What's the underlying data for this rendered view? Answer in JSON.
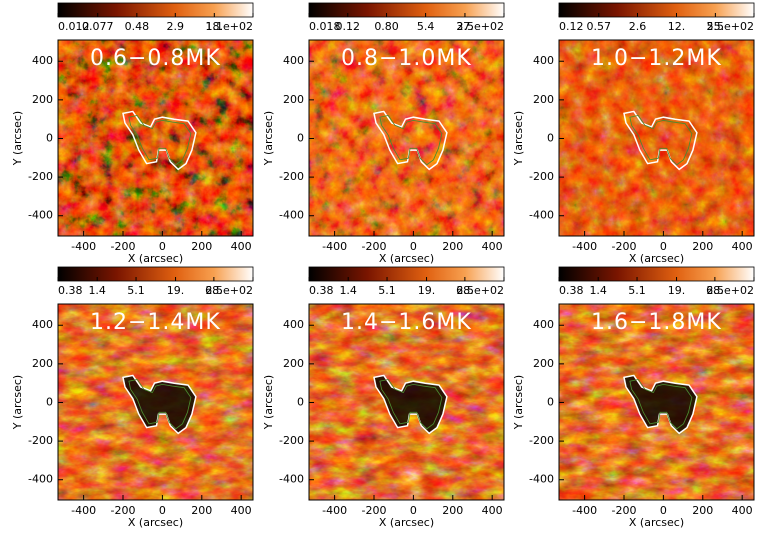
{
  "chart_data": [
    {
      "type": "image",
      "title": "0.6−0.8MK",
      "xlabel": "X (arcsec)",
      "ylabel": "Y (arcsec)",
      "xlim": [
        -530,
        460
      ],
      "ylim": [
        -505,
        510
      ],
      "xticks": [
        -400,
        -200,
        0,
        200,
        400
      ],
      "yticks": [
        -400,
        -200,
        0,
        200,
        400
      ],
      "colorbar": {
        "log": true,
        "clim": [
          0.012,
          110
        ],
        "ticks": [
          0.012,
          0.077,
          0.48,
          2.9,
          {
            "value": 18,
            "label": "18."
          },
          {
            "value": 110,
            "label": "1.1e+02"
          }
        ]
      }
    },
    {
      "type": "image",
      "title": "0.8−1.0MK",
      "xlabel": "X (arcsec)",
      "ylabel": "Y (arcsec)",
      "xlim": [
        -530,
        460
      ],
      "ylim": [
        -505,
        510
      ],
      "xticks": [
        -400,
        -200,
        0,
        200,
        400
      ],
      "yticks": [
        -400,
        -200,
        0,
        200,
        400
      ],
      "colorbar": {
        "log": true,
        "clim": [
          0.018,
          250
        ],
        "ticks": [
          0.018,
          0.12,
          {
            "value": 0.8,
            "label": "0.80"
          },
          5.4,
          {
            "value": 37,
            "label": "37."
          },
          {
            "value": 250,
            "label": "2.5e+02"
          }
        ]
      }
    },
    {
      "type": "image",
      "title": "1.0−1.2MK",
      "xlabel": "X (arcsec)",
      "ylabel": "Y (arcsec)",
      "xlim": [
        -530,
        460
      ],
      "ylim": [
        -505,
        510
      ],
      "xticks": [
        -400,
        -200,
        0,
        200,
        400
      ],
      "yticks": [
        -400,
        -200,
        0,
        200,
        400
      ],
      "colorbar": {
        "log": true,
        "clim": [
          0.12,
          250
        ],
        "ticks": [
          0.12,
          0.57,
          2.6,
          {
            "value": 12,
            "label": "12."
          },
          {
            "value": 55,
            "label": "55."
          },
          {
            "value": 250,
            "label": "2.5e+02"
          }
        ]
      }
    },
    {
      "type": "image",
      "title": "1.2−1.4MK",
      "xlabel": "X (arcsec)",
      "ylabel": "Y (arcsec)",
      "xlim": [
        -530,
        460
      ],
      "ylim": [
        -505,
        510
      ],
      "xticks": [
        -400,
        -200,
        0,
        200,
        400
      ],
      "yticks": [
        -400,
        -200,
        0,
        200,
        400
      ],
      "colorbar": {
        "log": true,
        "clim": [
          0.38,
          250
        ],
        "ticks": [
          0.38,
          1.4,
          5.1,
          {
            "value": 19,
            "label": "19."
          },
          {
            "value": 68,
            "label": "68."
          },
          {
            "value": 250,
            "label": "2.5e+02"
          }
        ]
      }
    },
    {
      "type": "image",
      "title": "1.4−1.6MK",
      "xlabel": "X (arcsec)",
      "ylabel": "Y (arcsec)",
      "xlim": [
        -530,
        460
      ],
      "ylim": [
        -505,
        510
      ],
      "xticks": [
        -400,
        -200,
        0,
        200,
        400
      ],
      "yticks": [
        -400,
        -200,
        0,
        200,
        400
      ],
      "colorbar": {
        "log": true,
        "clim": [
          0.38,
          250
        ],
        "ticks": [
          0.38,
          1.4,
          5.1,
          {
            "value": 19,
            "label": "19."
          },
          {
            "value": 68,
            "label": "68."
          },
          {
            "value": 250,
            "label": "2.5e+02"
          }
        ]
      }
    },
    {
      "type": "image",
      "title": "1.6−1.8MK",
      "xlabel": "X (arcsec)",
      "ylabel": "Y (arcsec)",
      "xlim": [
        -530,
        460
      ],
      "ylim": [
        -505,
        510
      ],
      "xticks": [
        -400,
        -200,
        0,
        200,
        400
      ],
      "yticks": [
        -400,
        -200,
        0,
        200,
        400
      ],
      "colorbar": {
        "log": true,
        "clim": [
          0.38,
          250
        ],
        "ticks": [
          0.38,
          1.4,
          5.1,
          {
            "value": 19,
            "label": "19."
          },
          {
            "value": 68,
            "label": "68."
          },
          {
            "value": 250,
            "label": "2.5e+02"
          }
        ]
      }
    }
  ]
}
